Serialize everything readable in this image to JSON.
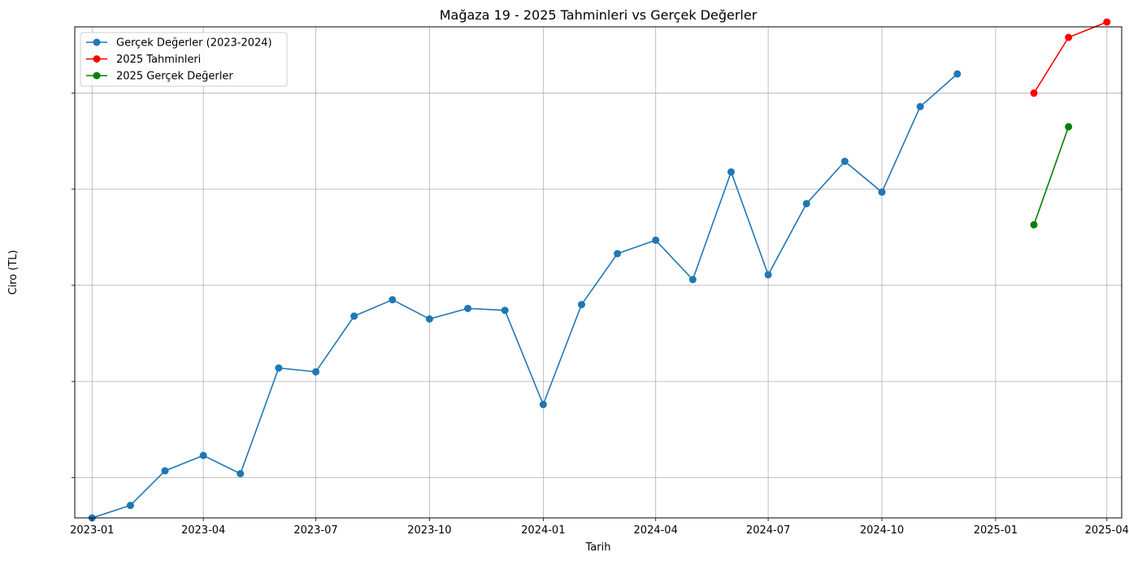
{
  "chart_data": {
    "type": "line",
    "title": "Mağaza 19 - 2025 Tahminleri vs Gerçek Değerler",
    "xlabel": "Tarih",
    "ylabel": "Ciro (TL)",
    "x_ticks": [
      "2023-01",
      "2023-04",
      "2023-07",
      "2023-10",
      "2024-01",
      "2024-04",
      "2024-07",
      "2024-10",
      "2025-01",
      "2025-04"
    ],
    "y_tick_labels": [
      "",
      "",
      "",
      "",
      ""
    ],
    "xlim": [
      "2022-12-18",
      "2025-04-13"
    ],
    "ylim": [
      -0.42,
      4.69
    ],
    "grid": true,
    "legend_position": "top-left",
    "series": [
      {
        "name": "Gerçek Değerler (2023-2024)",
        "color": "#1f77b4",
        "x": [
          "2023-01-01",
          "2023-02-01",
          "2023-03-01",
          "2023-04-01",
          "2023-05-01",
          "2023-06-01",
          "2023-07-01",
          "2023-08-01",
          "2023-09-01",
          "2023-10-01",
          "2023-11-01",
          "2023-12-01",
          "2024-01-01",
          "2024-02-01",
          "2024-03-01",
          "2024-04-01",
          "2024-05-01",
          "2024-06-01",
          "2024-07-01",
          "2024-08-01",
          "2024-09-01",
          "2024-10-01",
          "2024-11-01",
          "2024-12-01"
        ],
        "y": [
          -0.42,
          -0.29,
          0.07,
          0.23,
          0.04,
          1.14,
          1.1,
          1.68,
          1.85,
          1.65,
          1.76,
          1.74,
          0.76,
          1.8,
          2.33,
          2.47,
          2.06,
          3.18,
          2.11,
          2.85,
          3.29,
          2.97,
          3.86,
          4.2
        ]
      },
      {
        "name": "2025 Tahminleri",
        "color": "#ff0000",
        "x": [
          "2025-02-01",
          "2025-03-01",
          "2025-04-01"
        ],
        "y": [
          4.0,
          4.58,
          4.74
        ]
      },
      {
        "name": "2025 Gerçek Değerler",
        "color": "#008000",
        "x": [
          "2025-02-01",
          "2025-03-01"
        ],
        "y": [
          2.63,
          3.65
        ]
      }
    ]
  }
}
